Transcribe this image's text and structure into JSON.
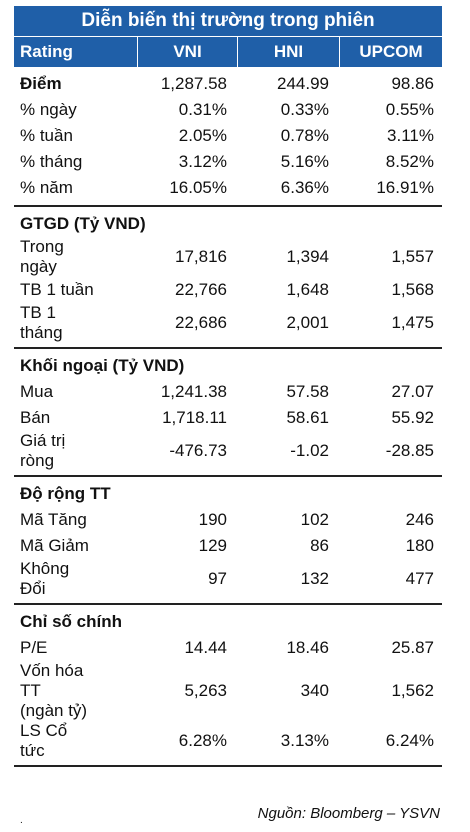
{
  "title": "Diễn biến thị trường trong phiên",
  "header": {
    "label": "Rating",
    "col1": "VNI",
    "col2": "HNI",
    "col3": "UPCOM"
  },
  "score_row": {
    "label": "Điểm",
    "v1": "1,287.58",
    "v2": "244.99",
    "v3": "98.86"
  },
  "pct_rows": [
    {
      "label": "% ngày",
      "v1": "0.31%",
      "v2": "0.33%",
      "v3": "0.55%"
    },
    {
      "label": "% tuần",
      "v1": "2.05%",
      "v2": "0.78%",
      "v3": "3.11%"
    },
    {
      "label": "% tháng",
      "v1": "3.12%",
      "v2": "5.16%",
      "v3": "8.52%"
    },
    {
      "label": "% năm",
      "v1": "16.05%",
      "v2": "6.36%",
      "v3": "16.91%"
    }
  ],
  "gtgd": {
    "title": "GTGD (Tỷ VND)",
    "rows": [
      {
        "label": "Trong\nngày",
        "v1": "17,816",
        "v2": "1,394",
        "v3": "1,557"
      },
      {
        "label": "TB 1 tuần",
        "v1": "22,766",
        "v2": "1,648",
        "v3": "1,568"
      },
      {
        "label": "TB 1\ntháng",
        "v1": "22,686",
        "v2": "2,001",
        "v3": "1,475"
      }
    ]
  },
  "foreign": {
    "title": "Khối ngoại (Tỷ VND)",
    "rows": [
      {
        "label": "Mua",
        "v1": "1,241.38",
        "v2": "57.58",
        "v3": "27.07"
      },
      {
        "label": "Bán",
        "v1": "1,718.11",
        "v2": "58.61",
        "v3": "55.92"
      },
      {
        "label": "Giá trị\nròng",
        "v1": "-476.73",
        "v2": "-1.02",
        "v3": "-28.85"
      }
    ]
  },
  "breadth": {
    "title": "Độ rộng TT",
    "rows": [
      {
        "label": "Mã Tăng",
        "v1": "190",
        "v2": "102",
        "v3": "246"
      },
      {
        "label": "Mã Giảm",
        "v1": "129",
        "v2": "86",
        "v3": "180"
      },
      {
        "label": "Không\nĐổi",
        "v1": "97",
        "v2": "132",
        "v3": "477"
      }
    ]
  },
  "key": {
    "title": "Chỉ số chính",
    "rows": [
      {
        "label": "P/E",
        "v1": "14.44",
        "v2": "18.46",
        "v3": "25.87"
      },
      {
        "label": "Vốn hóa\nTT\n(ngàn tỷ)",
        "v1": "5,263",
        "v2": "340",
        "v3": "1,562"
      },
      {
        "label": "LS Cổ\ntức",
        "v1": "6.28%",
        "v2": "3.13%",
        "v3": "6.24%"
      }
    ]
  },
  "source": "Nguồn: Bloomberg – YSVN",
  "footer_mark": ".",
  "colors": {
    "header_bg": "#1f5fa8",
    "header_text": "#ffffff"
  }
}
